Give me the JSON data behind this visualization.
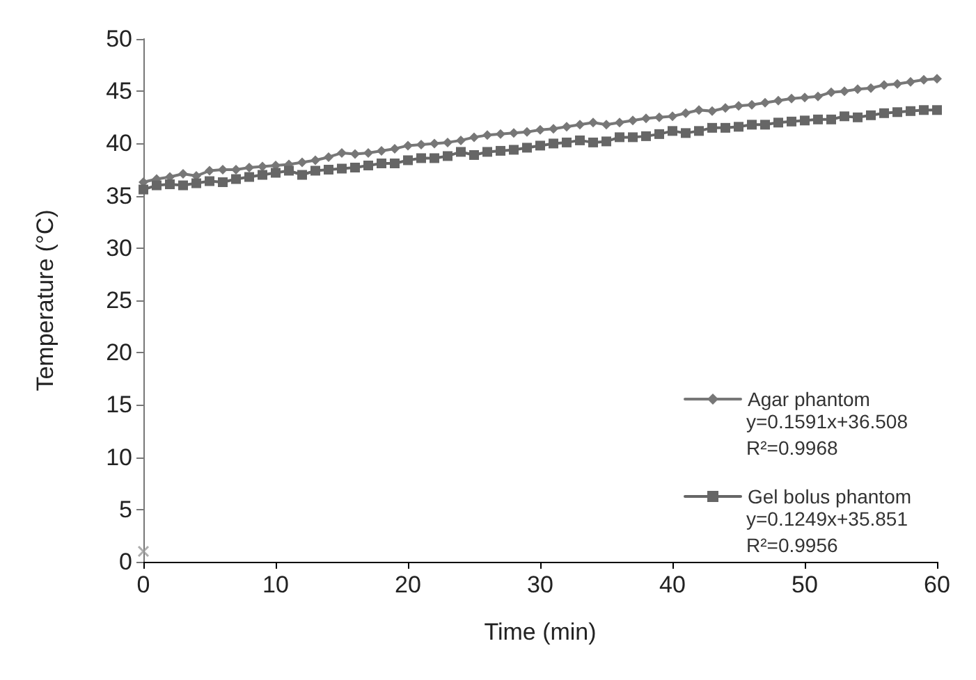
{
  "chart_data": {
    "type": "line",
    "xlabel": "Time (min)",
    "ylabel": "Temperature (°C)",
    "xlim": [
      0,
      60
    ],
    "xticks": [
      0,
      10,
      20,
      30,
      40,
      50,
      60
    ],
    "ylim": [
      0,
      50
    ],
    "yticks": [
      0,
      5,
      10,
      15,
      20,
      25,
      30,
      35,
      40,
      45,
      50
    ],
    "grid": false,
    "legend": "bottom right",
    "annotations": [
      "y=0.1591x+36.508",
      "R²=0.9968",
      "y=0.1249x+35.851",
      "R²=0.9956"
    ],
    "series": [
      {
        "name": "Agar phantom",
        "color": "#777777",
        "marker": "diamond",
        "x": [
          0,
          1,
          2,
          3,
          4,
          5,
          6,
          7,
          8,
          9,
          10,
          11,
          12,
          13,
          14,
          15,
          16,
          17,
          18,
          19,
          20,
          21,
          22,
          23,
          24,
          25,
          26,
          27,
          28,
          29,
          30,
          31,
          32,
          33,
          34,
          35,
          36,
          37,
          38,
          39,
          40,
          41,
          42,
          43,
          44,
          45,
          46,
          47,
          48,
          49,
          50,
          51,
          52,
          53,
          54,
          55,
          56,
          57,
          58,
          59,
          60
        ],
        "values": [
          36.3,
          36.6,
          36.8,
          37.1,
          36.9,
          37.4,
          37.5,
          37.5,
          37.7,
          37.8,
          37.9,
          38.0,
          38.2,
          38.4,
          38.7,
          39.1,
          39.0,
          39.1,
          39.3,
          39.5,
          39.8,
          39.9,
          40.0,
          40.1,
          40.3,
          40.6,
          40.8,
          40.9,
          41.0,
          41.1,
          41.3,
          41.4,
          41.6,
          41.8,
          42.0,
          41.8,
          42.0,
          42.2,
          42.4,
          42.5,
          42.6,
          42.9,
          43.2,
          43.1,
          43.4,
          43.6,
          43.7,
          43.9,
          44.1,
          44.3,
          44.4,
          44.5,
          44.9,
          45.0,
          45.2,
          45.3,
          45.6,
          45.7,
          45.9,
          46.1,
          46.2
        ]
      },
      {
        "name": "Gel bolus phantom",
        "color": "#666666",
        "marker": "square",
        "x": [
          0,
          1,
          2,
          3,
          4,
          5,
          6,
          7,
          8,
          9,
          10,
          11,
          12,
          13,
          14,
          15,
          16,
          17,
          18,
          19,
          20,
          21,
          22,
          23,
          24,
          25,
          26,
          27,
          28,
          29,
          30,
          31,
          32,
          33,
          34,
          35,
          36,
          37,
          38,
          39,
          40,
          41,
          42,
          43,
          44,
          45,
          46,
          47,
          48,
          49,
          50,
          51,
          52,
          53,
          54,
          55,
          56,
          57,
          58,
          59,
          60
        ],
        "values": [
          35.6,
          36.0,
          36.1,
          36.0,
          36.2,
          36.4,
          36.3,
          36.6,
          36.8,
          37.0,
          37.2,
          37.4,
          37.0,
          37.4,
          37.5,
          37.6,
          37.7,
          37.9,
          38.1,
          38.1,
          38.4,
          38.6,
          38.6,
          38.8,
          39.2,
          38.9,
          39.2,
          39.3,
          39.4,
          39.6,
          39.8,
          40.0,
          40.1,
          40.3,
          40.1,
          40.2,
          40.6,
          40.6,
          40.7,
          40.9,
          41.2,
          41.0,
          41.2,
          41.5,
          41.5,
          41.6,
          41.8,
          41.8,
          42.0,
          42.1,
          42.2,
          42.3,
          42.3,
          42.6,
          42.5,
          42.7,
          42.9,
          43.0,
          43.1,
          43.2,
          43.2
        ]
      },
      {
        "type": "scatter",
        "color": "#999999",
        "marker": "cross",
        "x": [
          0
        ],
        "values": [
          1
        ]
      }
    ]
  }
}
